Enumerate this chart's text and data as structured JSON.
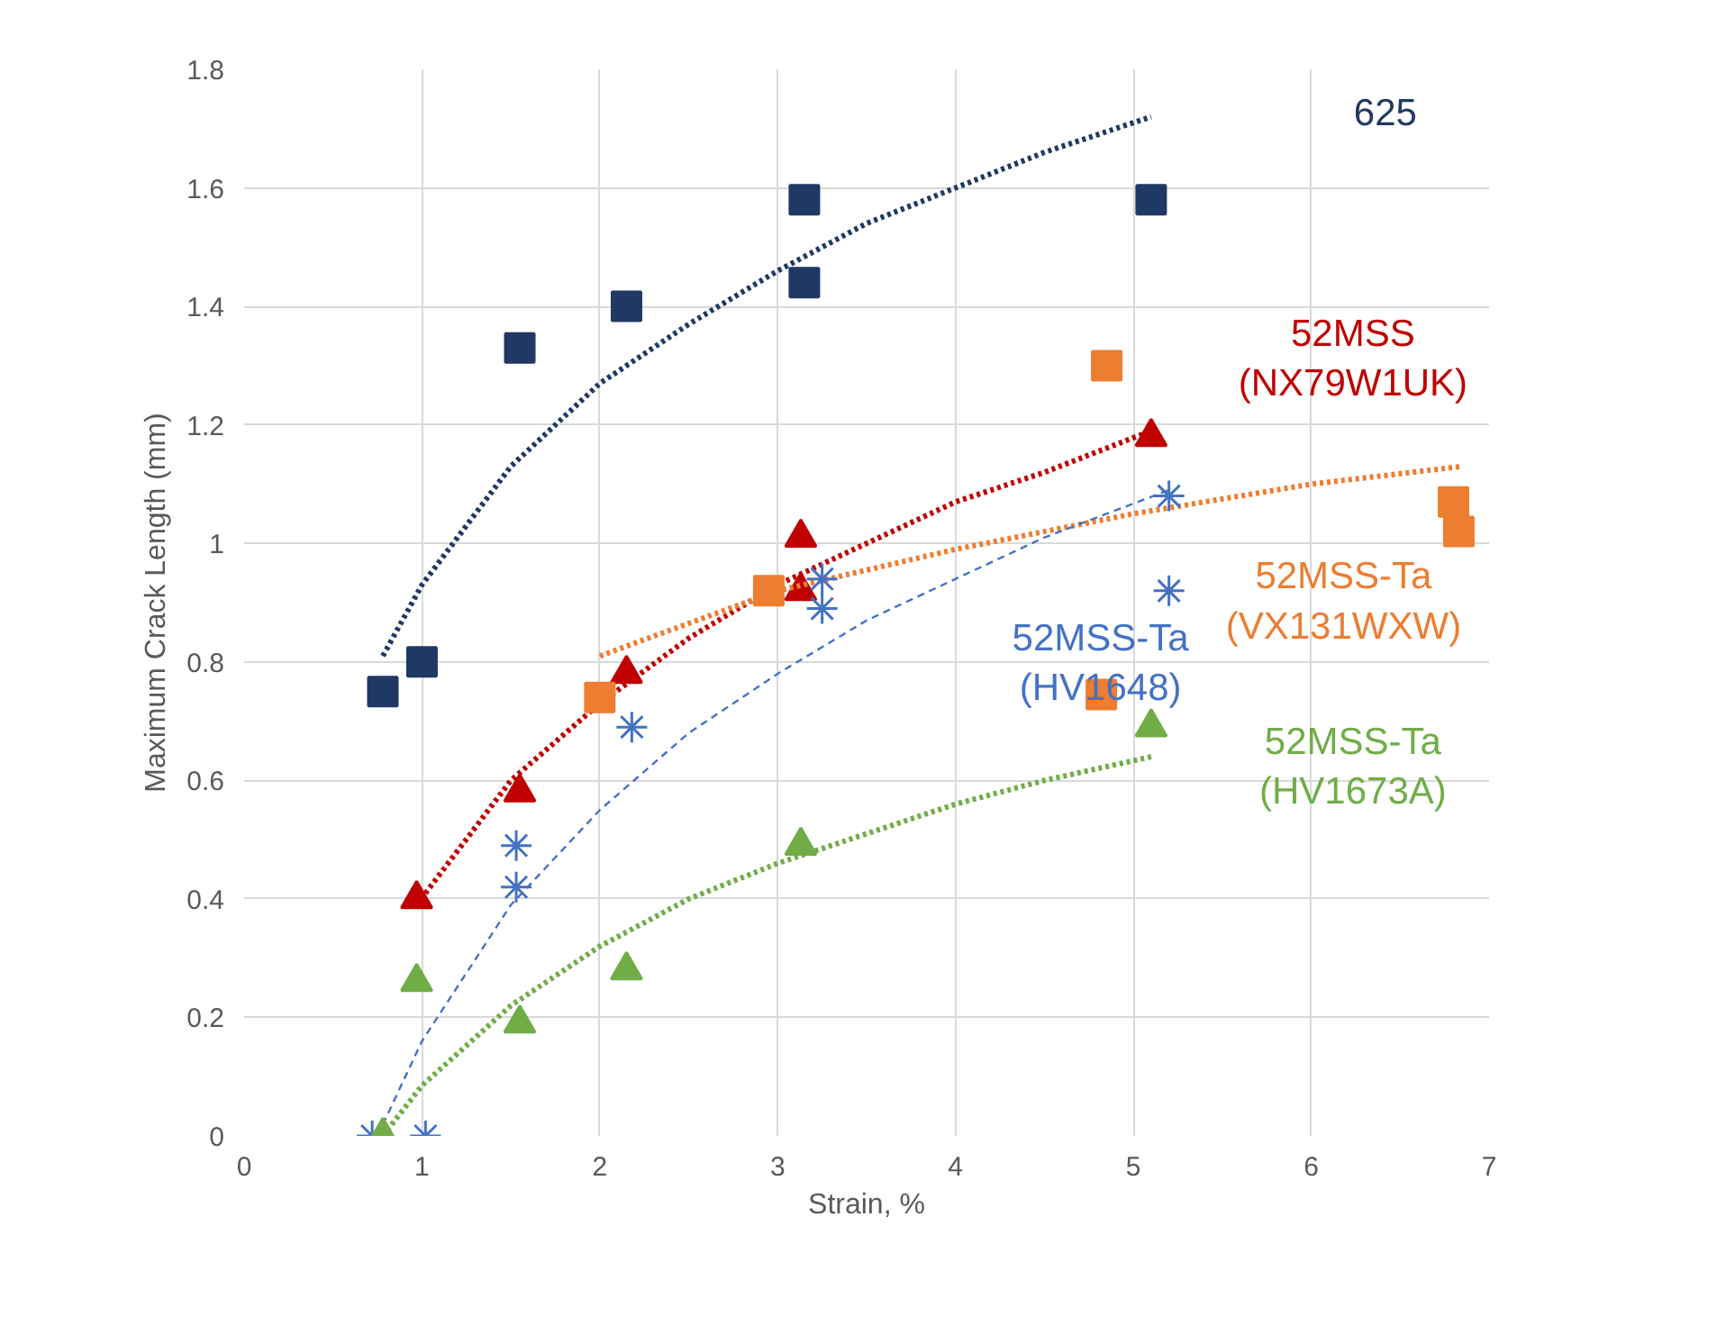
{
  "chart_data": {
    "type": "scatter",
    "xlabel": "Strain, %",
    "ylabel": "Maximum Crack Length (mm)",
    "xlim": [
      0,
      7
    ],
    "xticks": [
      0,
      1,
      2,
      3,
      4,
      5,
      6,
      7
    ],
    "ylim": [
      0,
      1.8
    ],
    "yticks": [
      0,
      {
        "value": 0.2,
        "label": "0.2"
      },
      {
        "value": 0.4,
        "label": "0.4"
      },
      {
        "value": 0.6,
        "label": "0.6"
      },
      {
        "value": 0.8,
        "label": "0.8"
      },
      1,
      {
        "value": 1.2,
        "label": "1.2"
      },
      {
        "value": 1.4,
        "label": "1.4"
      },
      {
        "value": 1.6,
        "label": "1.6"
      },
      {
        "value": 1.8,
        "label": "1.8"
      }
    ],
    "grid": true,
    "legend": false,
    "series": [
      {
        "name": "625",
        "color": "#203864",
        "marker": "square",
        "x": [
          0.78,
          1.0,
          1.55,
          2.15,
          3.15,
          3.15,
          5.1
        ],
        "values": [
          0.75,
          0.8,
          1.33,
          1.4,
          1.58,
          1.44,
          1.58
        ]
      },
      {
        "type": "line",
        "color": "#203864",
        "line_style": "dotted",
        "x": [
          0.78,
          1,
          1.5,
          2,
          2.5,
          3,
          3.5,
          4,
          4.5,
          5.1
        ],
        "values": [
          0.81,
          0.93,
          1.13,
          1.27,
          1.37,
          1.46,
          1.54,
          1.6,
          1.66,
          1.72
        ]
      },
      {
        "name": "52MSS\n(NX79W1UK)",
        "color": "#c00000",
        "marker": "triangle",
        "x": [
          0.97,
          1.55,
          2.15,
          3.13,
          3.13,
          5.1
        ],
        "values": [
          0.4,
          0.58,
          0.78,
          1.01,
          0.92,
          1.18
        ]
      },
      {
        "type": "line",
        "color": "#c00000",
        "line_style": "dotted",
        "x": [
          0.97,
          1.5,
          2,
          2.5,
          3,
          3.5,
          4,
          4.5,
          5.1
        ],
        "values": [
          0.39,
          0.6,
          0.73,
          0.84,
          0.93,
          1.0,
          1.07,
          1.12,
          1.19
        ]
      },
      {
        "name": "52MSS-Ta\n(VX131WXW)",
        "color": "#ed7d31",
        "marker": "square",
        "x": [
          2.0,
          2.95,
          4.85,
          4.82,
          6.8,
          6.83
        ],
        "values": [
          0.74,
          0.92,
          1.3,
          0.745,
          1.07,
          1.02
        ]
      },
      {
        "type": "line",
        "color": "#ed7d31",
        "line_style": "dotted",
        "x": [
          2,
          3,
          4,
          5,
          6,
          6.85
        ],
        "values": [
          0.81,
          0.92,
          0.99,
          1.05,
          1.1,
          1.13
        ]
      },
      {
        "name": "52MSS-Ta\n(HV1648)",
        "color": "#4472c4",
        "marker": "cross",
        "x": [
          0.72,
          1.02,
          1.53,
          1.53,
          2.18,
          3.25,
          3.25,
          5.2,
          5.2
        ],
        "values": [
          0,
          0,
          0.49,
          0.42,
          0.69,
          0.94,
          0.89,
          1.08,
          0.92
        ]
      },
      {
        "type": "line",
        "color": "#4472c4",
        "line_style": "dashed",
        "x": [
          0.75,
          1,
          1.5,
          2,
          2.5,
          3,
          3.5,
          4,
          4.5,
          5.2
        ],
        "values": [
          0.0,
          0.16,
          0.39,
          0.55,
          0.68,
          0.78,
          0.87,
          0.94,
          1.01,
          1.09
        ]
      },
      {
        "name": "52MSS-Ta\n(HV1673A)",
        "color": "#70ad47",
        "marker": "triangle",
        "x": [
          0.78,
          0.97,
          1.55,
          2.15,
          3.13,
          5.1
        ],
        "values": [
          0,
          0.26,
          0.19,
          0.28,
          0.49,
          0.69
        ]
      },
      {
        "type": "line",
        "color": "#70ad47",
        "line_style": "dotted",
        "x": [
          0.78,
          1,
          1.5,
          2,
          2.5,
          3,
          3.5,
          4,
          4.5,
          5.1
        ],
        "values": [
          0.0,
          0.085,
          0.22,
          0.32,
          0.4,
          0.46,
          0.51,
          0.56,
          0.6,
          0.64
        ]
      }
    ]
  }
}
